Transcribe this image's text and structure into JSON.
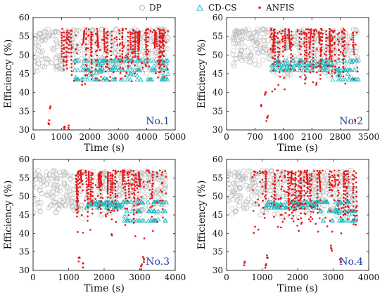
{
  "legend": [
    {
      "label": "DP",
      "marker": "circle",
      "color": "#b4b4b4"
    },
    {
      "label": "CD-CS",
      "marker": "triangle",
      "color": "#20b7bd"
    },
    {
      "label": "ANFIS",
      "marker": "dot",
      "color": "#e41a1c"
    }
  ],
  "chart_data": [
    {
      "type": "scatter",
      "tag": "No.1",
      "xlabel": "Time (s)",
      "ylabel": "Efficiency (%)",
      "xlim": [
        0,
        5000
      ],
      "ylim": [
        30,
        60
      ],
      "xticks": [
        0,
        1000,
        2000,
        3000,
        4000,
        5000
      ],
      "yticks": [
        30,
        35,
        40,
        45,
        50,
        55,
        60
      ],
      "grid": false,
      "t_end": 4750,
      "dp_band": [
        [
          0,
          1200,
          45,
          57
        ],
        [
          1200,
          4750,
          44,
          57
        ]
      ],
      "cdcs_band": [
        [
          1450,
          4750,
          43.5,
          48.5
        ]
      ],
      "anfis_band": [
        [
          1000,
          4750,
          41,
          57
        ]
      ],
      "anfis_outliers": [
        [
          550,
          32
        ],
        [
          600,
          36
        ],
        [
          1100,
          31
        ],
        [
          1250,
          30.5
        ]
      ]
    },
    {
      "type": "scatter",
      "tag": "No.2",
      "xlabel": "Time (s)",
      "ylabel": "Efficiency (%)",
      "xlim": [
        0,
        3500
      ],
      "ylim": [
        30,
        60
      ],
      "xticks": [
        0,
        700,
        1400,
        2100,
        2800,
        3500
      ],
      "yticks": [
        30,
        35,
        40,
        45,
        50,
        55,
        60
      ],
      "grid": false,
      "t_end": 3250,
      "dp_band": [
        [
          150,
          1100,
          47,
          57
        ],
        [
          1100,
          3250,
          44,
          57
        ]
      ],
      "cdcs_band": [
        [
          1100,
          2600,
          46,
          48.5
        ],
        [
          2600,
          3250,
          43.5,
          48.5
        ]
      ],
      "anfis_band": [
        [
          1050,
          3250,
          40,
          57
        ]
      ],
      "anfis_outliers": [
        [
          850,
          36
        ],
        [
          950,
          40
        ],
        [
          1000,
          33
        ],
        [
          3150,
          32
        ]
      ]
    },
    {
      "type": "scatter",
      "tag": "No.3",
      "xlabel": "Time (s)",
      "ylabel": "Efficiency (%)",
      "xlim": [
        0,
        4000
      ],
      "ylim": [
        30,
        60
      ],
      "xticks": [
        0,
        1000,
        2000,
        3000,
        4000
      ],
      "yticks": [
        30,
        35,
        40,
        45,
        50,
        55,
        60
      ],
      "grid": false,
      "t_end": 3750,
      "dp_band": [
        [
          0,
          1000,
          44,
          57
        ],
        [
          1000,
          3750,
          44,
          57
        ]
      ],
      "cdcs_band": [
        [
          1500,
          2550,
          47,
          48.5
        ],
        [
          2550,
          3750,
          43.5,
          48.5
        ]
      ],
      "anfis_band": [
        [
          1200,
          3750,
          38,
          57
        ]
      ],
      "anfis_outliers": [
        [
          1300,
          33
        ],
        [
          1400,
          31.5
        ],
        [
          3050,
          31
        ],
        [
          3100,
          33
        ]
      ]
    },
    {
      "type": "scatter",
      "tag": "No.4",
      "xlabel": "Time (s)",
      "ylabel": "Efficiency (%)",
      "xlim": [
        0,
        4000
      ],
      "ylim": [
        30,
        60
      ],
      "xticks": [
        0,
        1000,
        2000,
        3000,
        4000
      ],
      "yticks": [
        30,
        35,
        40,
        45,
        50,
        55,
        60
      ],
      "grid": false,
      "t_end": 3650,
      "dp_band": [
        [
          0,
          1000,
          45,
          57
        ],
        [
          1000,
          3650,
          44,
          57
        ]
      ],
      "cdcs_band": [
        [
          1100,
          2550,
          47,
          48.5
        ],
        [
          2550,
          3650,
          43.5,
          48.5
        ]
      ],
      "anfis_band": [
        [
          700,
          3650,
          40,
          57
        ]
      ],
      "anfis_outliers": [
        [
          500,
          32
        ],
        [
          1100,
          31
        ],
        [
          1150,
          34
        ],
        [
          2950,
          36
        ],
        [
          3200,
          33
        ]
      ]
    }
  ]
}
